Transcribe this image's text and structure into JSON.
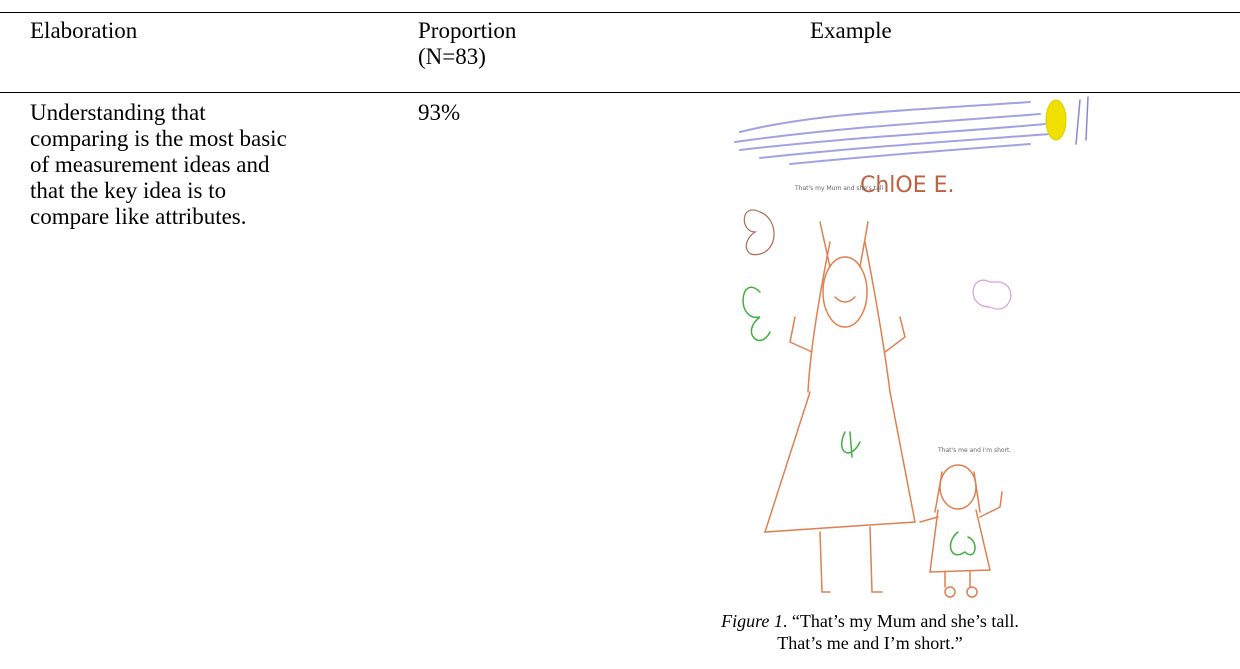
{
  "table": {
    "header": [
      "Elaboration",
      "Proportion (N=83)",
      "Example"
    ],
    "rows": [
      [
        "Understanding that comparing is the most basic of measurement ideas and that the key idea is to compare like attributes.",
        "93%"
      ]
    ]
  },
  "figure": {
    "drawing_texts": [
      "ChlOE E.",
      "That's my Mum and she's tall",
      "That's me and I'm short."
    ],
    "caption": {
      "label": "Figure 1",
      "text": ". “That’s my Mum and she’s tall. That’s me and I’m short.”"
    }
  }
}
